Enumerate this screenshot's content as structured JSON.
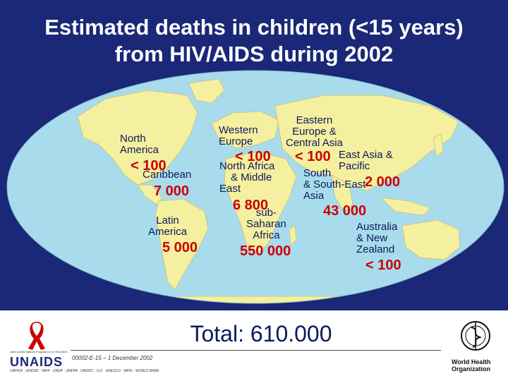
{
  "title": {
    "line1": "Estimated deaths in children (<15 years)",
    "line2": "from HIV/AIDS during 2002"
  },
  "regions": {
    "north_america": {
      "line1": "North",
      "line2": "America",
      "value": "< 100"
    },
    "caribbean": {
      "label": "Caribbean",
      "value": "7 000"
    },
    "latin_america": {
      "line1": "Latin",
      "line2": "America",
      "value": "5 000"
    },
    "western_europe": {
      "line1": "Western",
      "line2": "Europe",
      "value": "< 100"
    },
    "north_africa": {
      "line1": "North Africa",
      "line2": "& Middle",
      "line3": "East",
      "value": "6 800"
    },
    "sub_saharan": {
      "line1": "sub-",
      "line2": "Saharan",
      "line3": "Africa",
      "value": "550 000"
    },
    "eastern_europe": {
      "line1": "Eastern",
      "line2": "Europe &",
      "line3": "Central Asia",
      "value": "< 100"
    },
    "east_asia": {
      "line1": "East Asia &",
      "line2": "Pacific",
      "value": "2 000"
    },
    "south_asia": {
      "line1": "South",
      "line2": "& South-East",
      "line3": "Asia",
      "value": "43 000"
    },
    "australia": {
      "line1": "Australia",
      "line2": "& New",
      "line3": "Zealand",
      "value": "< 100"
    }
  },
  "total": "Total: 610.000",
  "footnote": "00002-E-15 – 1 December 2002",
  "logos": {
    "left_word": "UNAIDS",
    "left_top": "Joint United Nations Programme on HIV/AIDS",
    "left_sub": "UNHCR · UNICEF · WFP · UNDP · UNFPA · UNODC · ILO · UNESCO · WHO · WORLD BANK",
    "right_line1": "World Health",
    "right_line2": "Organization"
  },
  "colors": {
    "background": "#1a2877",
    "ocean": "#a8dcec",
    "land": "#f5efa0",
    "value": "#cc0000",
    "label": "#0d1a5c"
  }
}
